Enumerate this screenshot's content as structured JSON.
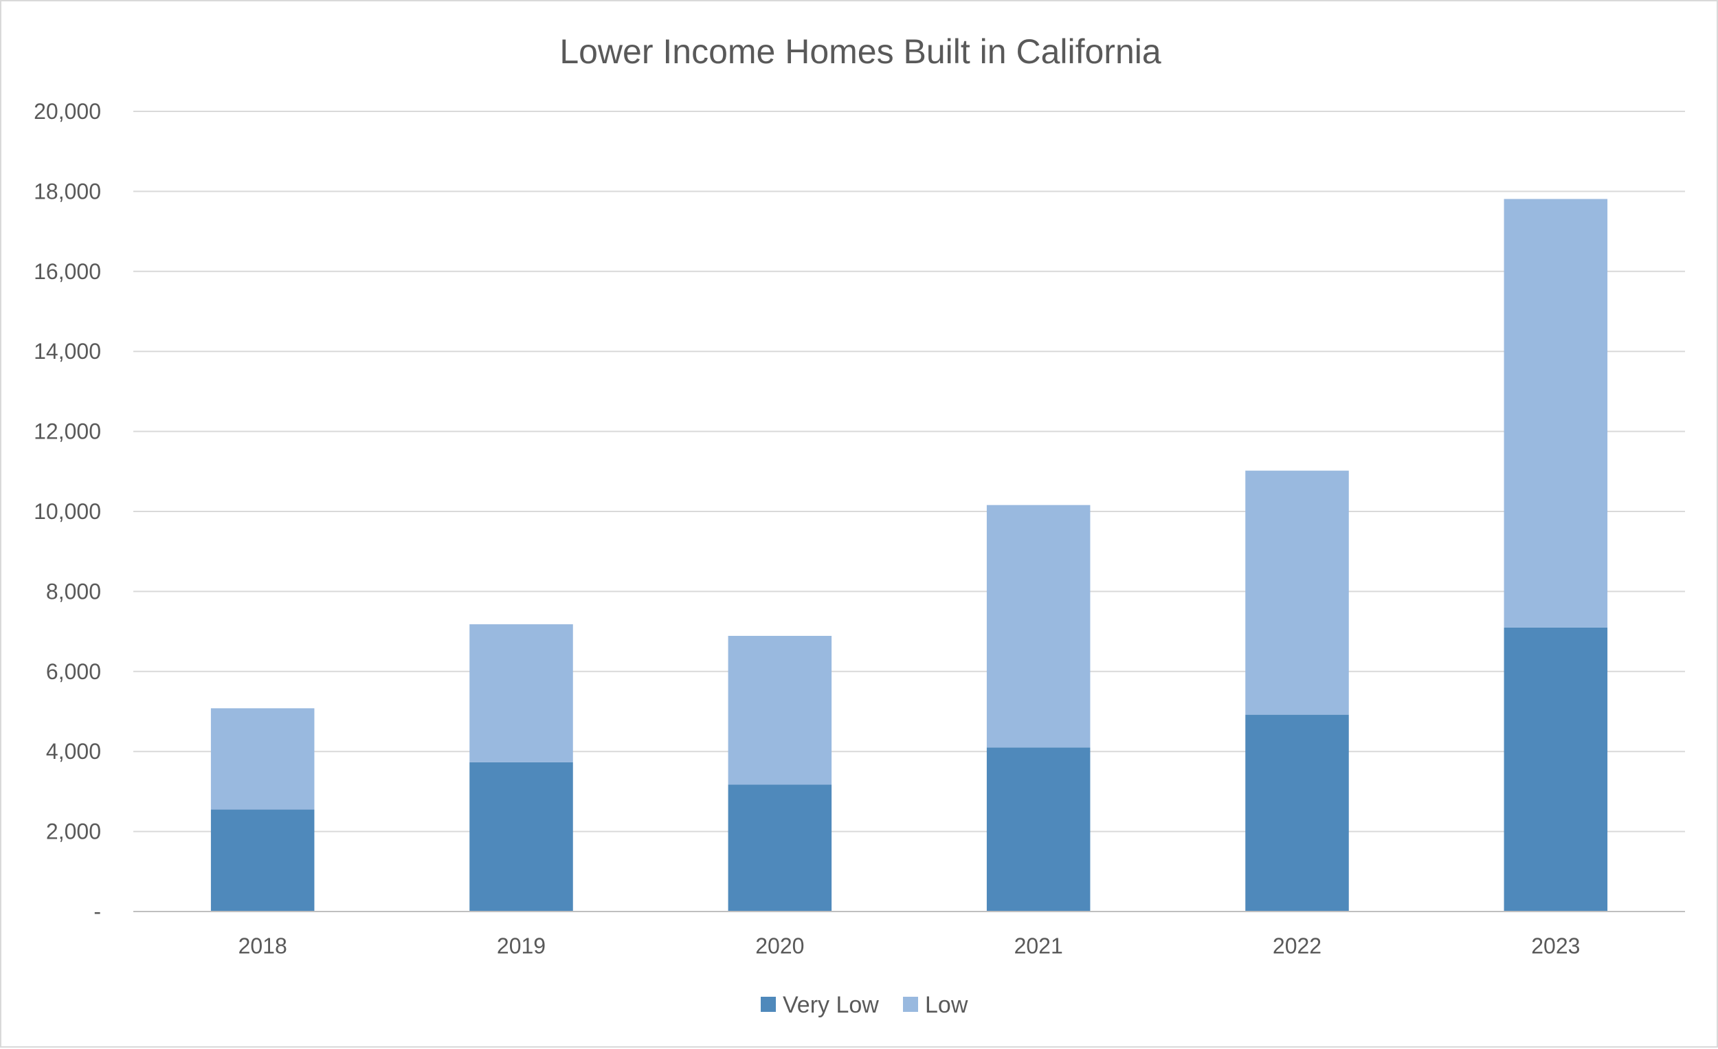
{
  "chart_data": {
    "type": "bar",
    "stacked": true,
    "title": "Lower Income Homes Built in California",
    "xlabel": "",
    "ylabel": "",
    "categories": [
      "2018",
      "2019",
      "2020",
      "2021",
      "2022",
      "2023"
    ],
    "series": [
      {
        "name": "Very Low",
        "color": "#4f89bb",
        "values": [
          2550,
          3730,
          3170,
          4100,
          4920,
          7100
        ]
      },
      {
        "name": "Low",
        "color": "#99b9df",
        "values": [
          2530,
          3450,
          3720,
          6060,
          6100,
          10710
        ]
      }
    ],
    "ylim": [
      0,
      20000
    ],
    "yticks": [
      "-",
      "2,000",
      "4,000",
      "6,000",
      "8,000",
      "10,000",
      "12,000",
      "14,000",
      "16,000",
      "18,000",
      "20,000"
    ],
    "grid": true,
    "legend": "bottom"
  }
}
